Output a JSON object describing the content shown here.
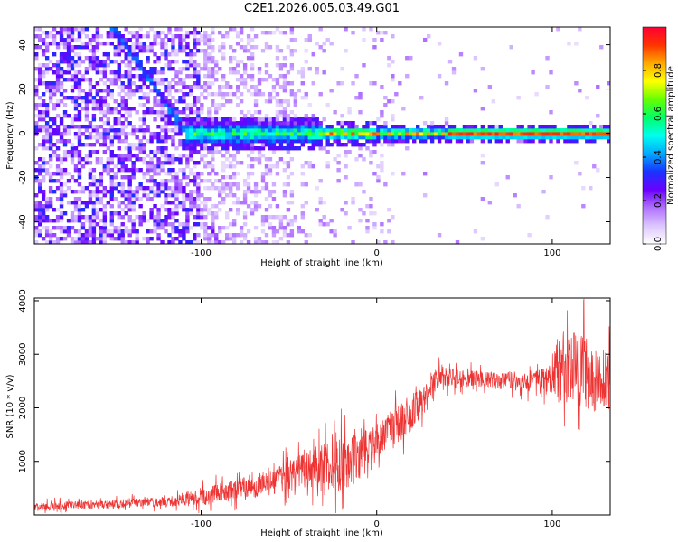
{
  "title": "C2E1.2026.005.03.49.G01",
  "chart_data": [
    {
      "type": "heatmap",
      "xlabel": "Height of straight line (km)",
      "ylabel": "Frequency (Hz)",
      "xlim": [
        -195,
        133
      ],
      "ylim": [
        -50,
        48
      ],
      "xticks": [
        -100,
        0,
        100
      ],
      "yticks": [
        -40,
        -20,
        0,
        20,
        40
      ],
      "xtick_labels": [
        "-100",
        "0",
        "100"
      ],
      "ytick_labels": [
        "-40",
        "-20",
        "0",
        "20",
        "40"
      ],
      "description_points": {
        "dominant_line_frequency_hz": 0,
        "line_start_km": -108,
        "diagonal_track": [
          [
            -150,
            48
          ],
          [
            -108,
            0
          ]
        ],
        "secondary_track": [
          [
            -115,
            -20
          ],
          [
            -88,
            -50
          ]
        ]
      },
      "colorbar": {
        "label": "Normalized spectral amplitude",
        "range": [
          0.0,
          1.0
        ],
        "ticks": [
          0.0,
          0.2,
          0.4,
          0.6,
          0.8
        ],
        "tick_labels": [
          "0.0",
          "0.2",
          "0.4",
          "0.6",
          "0.8"
        ],
        "colors": [
          "#ffffff",
          "#dcc6ff",
          "#b070ff",
          "#6a00ff",
          "#1a33ff",
          "#00aaff",
          "#00ffee",
          "#00ff66",
          "#66ff00",
          "#ffff00",
          "#ffaa00",
          "#ff3300",
          "#ff0033"
        ]
      }
    },
    {
      "type": "line",
      "xlabel": "Height of straight line (km)",
      "ylabel": "SNR (10 * v/v)",
      "xlim": [
        -195,
        133
      ],
      "ylim": [
        0,
        4050
      ],
      "xticks": [
        -100,
        0,
        100
      ],
      "yticks": [
        1000,
        2000,
        3000,
        4000
      ],
      "xtick_labels": [
        "-100",
        "0",
        "100"
      ],
      "ytick_labels": [
        "1000",
        "2000",
        "3000",
        "4000"
      ],
      "color": "#ee3333",
      "series": [
        {
          "name": "SNR",
          "x": [
            -195,
            -150,
            -120,
            -100,
            -80,
            -60,
            -40,
            -30,
            -20,
            -10,
            0,
            10,
            20,
            30,
            35,
            50,
            70,
            90,
            97,
            103,
            115,
            125,
            133
          ],
          "y": [
            150,
            200,
            250,
            330,
            480,
            600,
            850,
            900,
            950,
            1100,
            1350,
            1650,
            1900,
            2250,
            2600,
            2550,
            2500,
            2500,
            2480,
            2700,
            2750,
            2500,
            2600
          ],
          "spread": [
            100,
            100,
            120,
            200,
            250,
            300,
            450,
            550,
            650,
            550,
            450,
            450,
            450,
            350,
            250,
            200,
            200,
            250,
            350,
            700,
            900,
            750,
            650
          ]
        }
      ]
    }
  ]
}
